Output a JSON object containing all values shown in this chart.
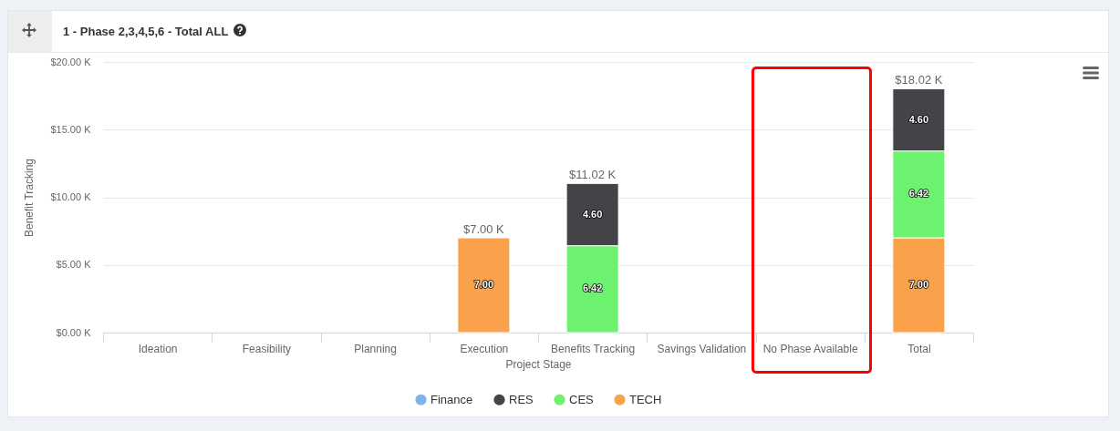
{
  "chart_data": {
    "type": "bar",
    "title": "1 - Phase 2,3,4,5,6 - Total ALL",
    "xlabel": "Project Stage",
    "ylabel": "Benefit Tracking",
    "categories": [
      "Ideation",
      "Feasibility",
      "Planning",
      "Execution",
      "Benefits Tracking",
      "Savings Validation",
      "No Phase Available",
      "Total"
    ],
    "stacked": true,
    "series": [
      {
        "name": "TECH",
        "color": "#f9a14b",
        "values": [
          null,
          null,
          null,
          7.0,
          null,
          null,
          null,
          7.0
        ],
        "value_labels": [
          null,
          null,
          null,
          "7.00",
          null,
          null,
          null,
          "7.00"
        ]
      },
      {
        "name": "CES",
        "color": "#6cf26f",
        "values": [
          null,
          null,
          null,
          null,
          6.42,
          null,
          null,
          6.42
        ],
        "value_labels": [
          null,
          null,
          null,
          null,
          "6.42",
          null,
          null,
          "6.42"
        ]
      },
      {
        "name": "RES",
        "color": "#434348",
        "values": [
          null,
          null,
          null,
          null,
          4.6,
          null,
          null,
          4.6
        ],
        "value_labels": [
          null,
          null,
          null,
          null,
          "4.60",
          null,
          null,
          "4.60"
        ]
      },
      {
        "name": "Finance",
        "color": "#7cb5ec",
        "values": [
          null,
          null,
          null,
          null,
          null,
          null,
          null,
          null
        ]
      }
    ],
    "totals": [
      null,
      null,
      null,
      "$7.00 K",
      "$11.02 K",
      null,
      null,
      "$18.02 K"
    ],
    "ylim": [
      0,
      20
    ],
    "yticks": [
      {
        "value": 0,
        "label": "$0.00 K"
      },
      {
        "value": 5,
        "label": "$5.00 K"
      },
      {
        "value": 10,
        "label": "$10.00 K"
      },
      {
        "value": 15,
        "label": "$15.00 K"
      },
      {
        "value": 20,
        "label": "$20.00 K"
      }
    ],
    "grid": "y",
    "legend": "bottom"
  }
}
